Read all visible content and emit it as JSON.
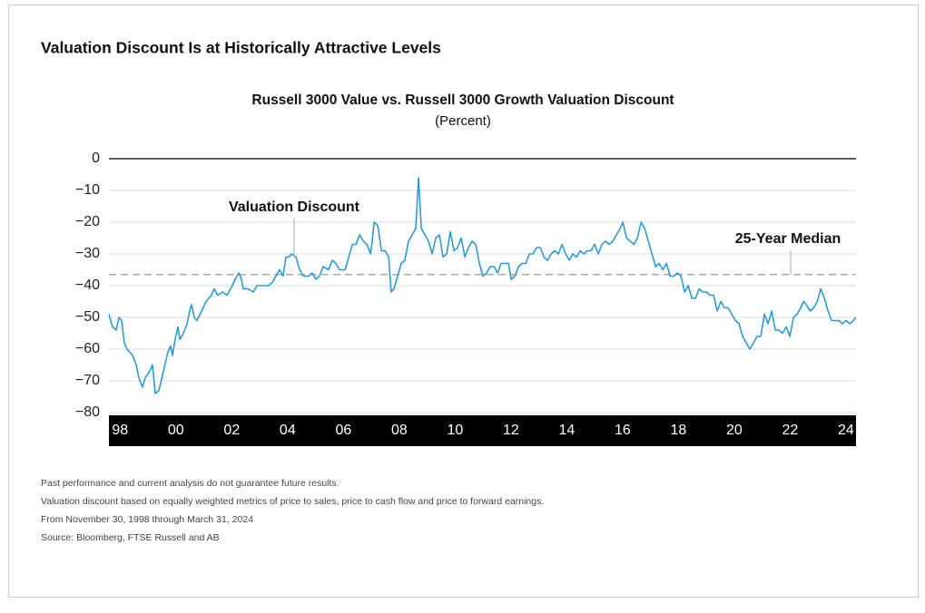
{
  "heading": "Valuation Discount Is at Historically Attractive Levels",
  "chart_data": {
    "type": "line",
    "title": "Russell 3000 Value vs. Russell 3000 Growth Valuation Discount",
    "subtitle": "(Percent)",
    "x": [
      1997.6,
      1997.73,
      1997.86,
      1997.96,
      1998.06,
      1998.15,
      1998.25,
      1998.45,
      1998.58,
      1998.67,
      1998.8,
      1998.9,
      1999.06,
      1999.16,
      1999.26,
      1999.39,
      1999.55,
      1999.71,
      1999.81,
      1999.88,
      1999.97,
      2000.07,
      2000.14,
      2000.27,
      2000.4,
      2000.49,
      2000.56,
      2000.66,
      2000.75,
      2000.92,
      2001.08,
      2001.27,
      2001.37,
      2001.5,
      2001.67,
      2001.83,
      2002.02,
      2002.12,
      2002.25,
      2002.35,
      2002.41,
      2002.58,
      2002.77,
      2002.9,
      2003.13,
      2003.32,
      2003.45,
      2003.58,
      2003.71,
      2003.84,
      2003.94,
      2004.04,
      2004.14,
      2004.3,
      2004.43,
      2004.56,
      2004.75,
      2004.88,
      2005.01,
      2005.14,
      2005.27,
      2005.47,
      2005.6,
      2005.73,
      2005.86,
      2006.06,
      2006.19,
      2006.32,
      2006.45,
      2006.58,
      2006.71,
      2006.84,
      2006.97,
      2007.03,
      2007.1,
      2007.23,
      2007.36,
      2007.49,
      2007.62,
      2007.71,
      2007.81,
      2007.94,
      2008.07,
      2008.2,
      2008.33,
      2008.46,
      2008.59,
      2008.69,
      2008.79,
      2008.92,
      2009.05,
      2009.18,
      2009.31,
      2009.44,
      2009.57,
      2009.7,
      2009.83,
      2009.96,
      2010.09,
      2010.22,
      2010.35,
      2010.48,
      2010.61,
      2010.74,
      2010.87,
      2011.0,
      2011.13,
      2011.26,
      2011.39,
      2011.52,
      2011.65,
      2011.78,
      2011.91,
      2012.01,
      2012.14,
      2012.27,
      2012.4,
      2012.53,
      2012.66,
      2012.79,
      2012.92,
      2013.05,
      2013.18,
      2013.31,
      2013.44,
      2013.57,
      2013.7,
      2013.83,
      2013.96,
      2014.09,
      2014.22,
      2014.35,
      2014.48,
      2014.61,
      2014.74,
      2014.87,
      2015.0,
      2015.13,
      2015.26,
      2015.39,
      2015.52,
      2015.65,
      2015.78,
      2015.91,
      2016.01,
      2016.14,
      2016.27,
      2016.4,
      2016.53,
      2016.66,
      2016.79,
      2016.92,
      2017.05,
      2017.18,
      2017.31,
      2017.44,
      2017.57,
      2017.7,
      2017.83,
      2017.96,
      2018.09,
      2018.22,
      2018.35,
      2018.48,
      2018.61,
      2018.74,
      2018.87,
      2019.0,
      2019.13,
      2019.26,
      2019.39,
      2019.52,
      2019.65,
      2019.78,
      2019.91,
      2020.04,
      2020.17,
      2020.3,
      2020.43,
      2020.56,
      2020.69,
      2020.82,
      2020.95,
      2021.08,
      2021.21,
      2021.34,
      2021.47,
      2021.6,
      2021.73,
      2021.86,
      2021.99,
      2022.12,
      2022.25,
      2022.38,
      2022.48,
      2022.58,
      2022.71,
      2022.84,
      2022.97,
      2023.1,
      2023.23,
      2023.36,
      2023.49,
      2023.62,
      2023.75,
      2023.88,
      2024.01,
      2024.14,
      2024.27,
      2024.36
    ],
    "series": [
      {
        "name": "Valuation Discount",
        "color": "#2b9bd3",
        "values": [
          -49,
          -53,
          -54,
          -50,
          -51,
          -58,
          -60,
          -62,
          -65,
          -69,
          -72,
          -69,
          -67,
          -65,
          -74,
          -73,
          -67,
          -61,
          -59,
          -62,
          -57,
          -53,
          -57,
          -55,
          -52,
          -48,
          -46,
          -50,
          -51,
          -48,
          -45,
          -43,
          -41,
          -43,
          -42,
          -43,
          -40,
          -38,
          -36,
          -38,
          -41,
          -41,
          -42,
          -40,
          -40,
          -40,
          -39,
          -37,
          -35,
          -37,
          -31,
          -31,
          -30,
          -31,
          -35,
          -37,
          -37,
          -36,
          -38,
          -37,
          -34,
          -35,
          -32,
          -33,
          -35,
          -35,
          -31,
          -27,
          -27,
          -24,
          -26,
          -27,
          -30,
          -26,
          -20,
          -21,
          -29,
          -29,
          -31,
          -42,
          -41,
          -37,
          -33,
          -32,
          -26,
          -24,
          -22,
          -6,
          -22,
          -24,
          -26,
          -30,
          -25,
          -24,
          -31,
          -30,
          -23,
          -29,
          -28,
          -25,
          -31,
          -28,
          -26,
          -27,
          -33,
          -37,
          -36,
          -34,
          -34,
          -36,
          -33,
          -33,
          -33,
          -38,
          -37,
          -34,
          -33,
          -33,
          -30,
          -30,
          -28,
          -28,
          -31,
          -32,
          -30,
          -29,
          -30,
          -27,
          -30,
          -32,
          -30,
          -31,
          -29,
          -30,
          -29,
          -29,
          -27,
          -30,
          -27,
          -26,
          -27,
          -26,
          -24,
          -22,
          -20,
          -25,
          -26,
          -27,
          -25,
          -20,
          -22,
          -26,
          -30,
          -34,
          -33,
          -35,
          -33,
          -37,
          -37,
          -36,
          -37,
          -42,
          -40,
          -44,
          -44,
          -41,
          -42,
          -42,
          -43,
          -43,
          -48,
          -45,
          -47,
          -47,
          -49,
          -51,
          -52,
          -56,
          -58,
          -60,
          -58,
          -56,
          -56,
          -49,
          -52,
          -48,
          -54,
          -54,
          -55,
          -53,
          -56,
          -50,
          -49,
          -47,
          -45,
          -46,
          -48,
          -47,
          -45,
          -41,
          -44,
          -48,
          -51,
          -51,
          -51,
          -52,
          -51,
          -52,
          -51,
          -50
        ]
      }
    ],
    "median": {
      "label": "25-Year Median",
      "value": -36.5,
      "color": "#aaaaaa"
    },
    "xlim": [
      1997.6,
      2024.36
    ],
    "xticks": [
      {
        "value": 1998,
        "label": "98"
      },
      {
        "value": 2000,
        "label": "00"
      },
      {
        "value": 2002,
        "label": "02"
      },
      {
        "value": 2004,
        "label": "04"
      },
      {
        "value": 2006,
        "label": "06"
      },
      {
        "value": 2008,
        "label": "08"
      },
      {
        "value": 2010,
        "label": "10"
      },
      {
        "value": 2012,
        "label": "12"
      },
      {
        "value": 2014,
        "label": "14"
      },
      {
        "value": 2016,
        "label": "16"
      },
      {
        "value": 2018,
        "label": "18"
      },
      {
        "value": 2020,
        "label": "20"
      },
      {
        "value": 2022,
        "label": "22"
      },
      {
        "value": 2024,
        "label": "24"
      }
    ],
    "ylim": [
      -80,
      0
    ],
    "yticks": [
      0,
      {
        "value": -10,
        "label": "−10"
      },
      {
        "value": -20,
        "label": "−20"
      },
      {
        "value": -30,
        "label": "−30"
      },
      {
        "value": -40,
        "label": "−40"
      },
      {
        "value": -50,
        "label": "−50"
      },
      {
        "value": -60,
        "label": "−60"
      },
      {
        "value": -70,
        "label": "−70"
      },
      {
        "value": -80,
        "label": "−80"
      }
    ],
    "grid": true
  },
  "footnotes": [
    "Past performance and current analysis do not guarantee future results.",
    "Valuation discount based on equally weighted metrics of price to sales, price to cash flow and price to forward earnings.",
    "From November 30, 1998 through March 31, 2024",
    "Source: Bloomberg, FTSE Russell and AB"
  ]
}
